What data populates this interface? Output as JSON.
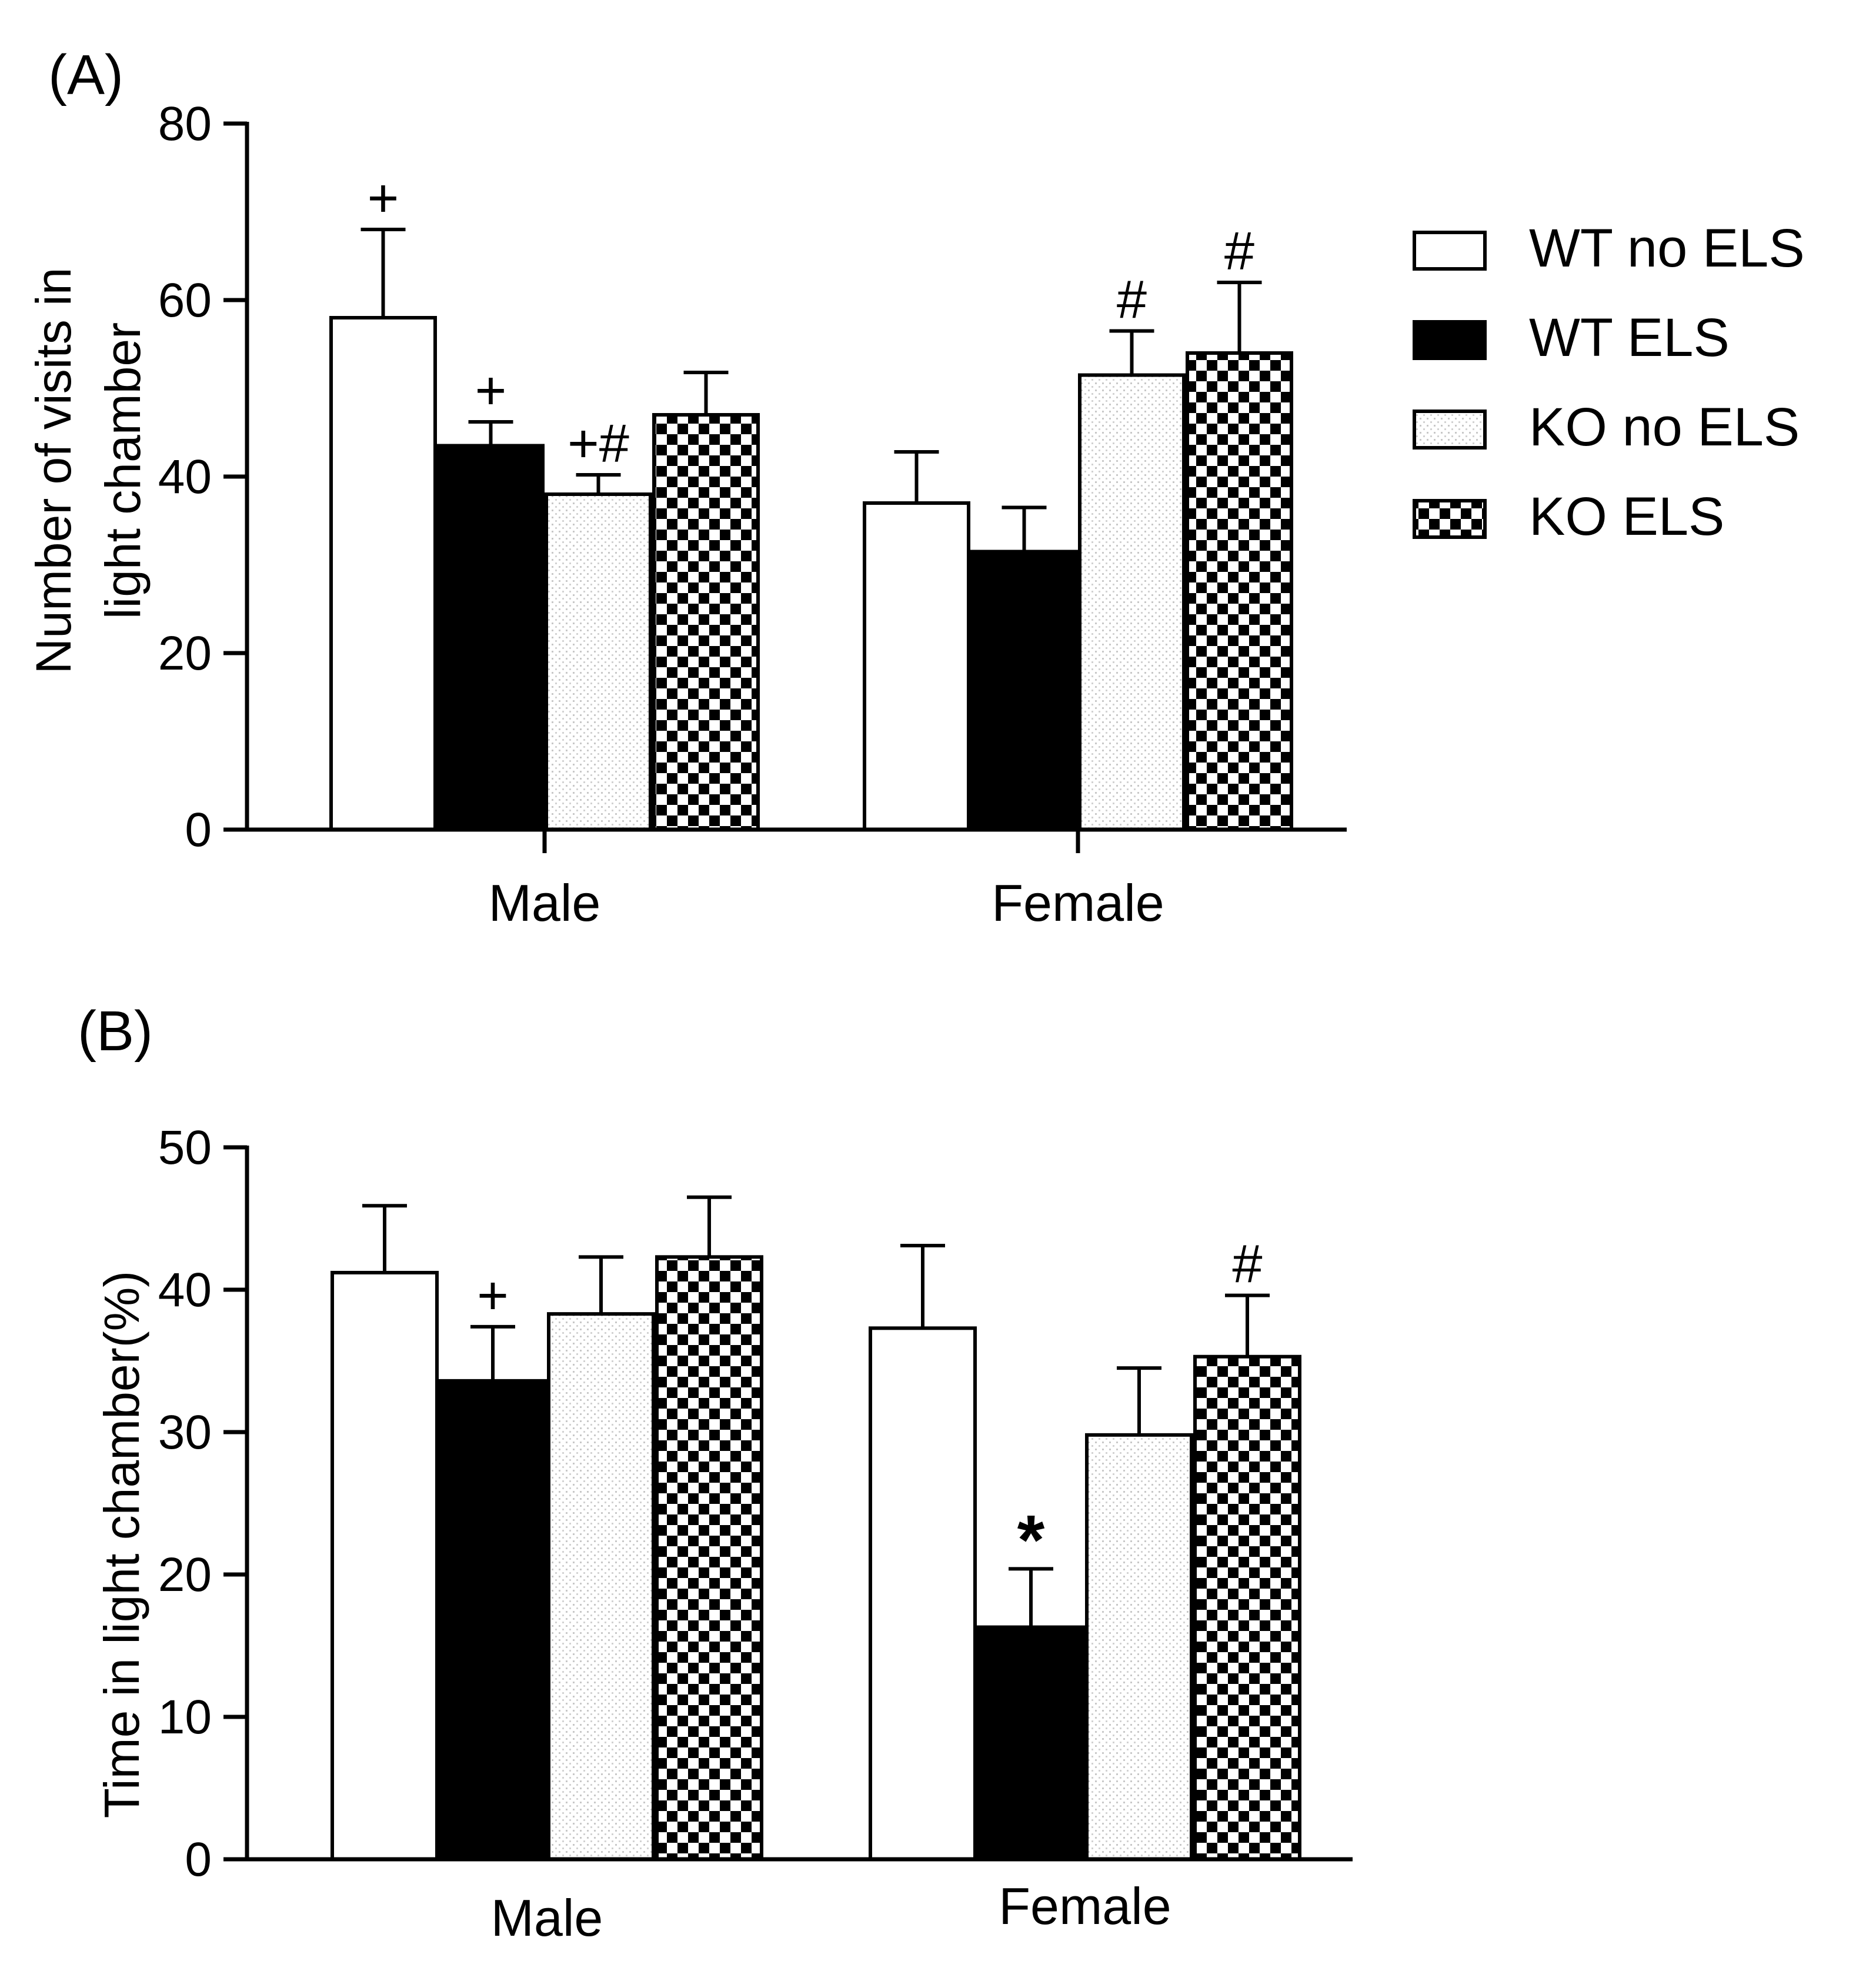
{
  "chart_data": [
    {
      "panel": "(A)",
      "type": "bar",
      "title": "",
      "xlabel": "",
      "ylabel_lines": [
        "Number of visits in",
        "light chamber"
      ],
      "ylim": [
        0,
        80
      ],
      "yticks": [
        0,
        20,
        40,
        60,
        80
      ],
      "categories": [
        "Male",
        "Female"
      ],
      "series": [
        {
          "name": "WT no ELS",
          "values": [
            58,
            37
          ],
          "errors": [
            10,
            5.8
          ],
          "annotations": [
            "+",
            ""
          ]
        },
        {
          "name": "WT ELS",
          "values": [
            43.5,
            31.5
          ],
          "errors": [
            2.7,
            5
          ],
          "annotations": [
            "+",
            ""
          ]
        },
        {
          "name": "KO no ELS",
          "values": [
            38,
            51.5
          ],
          "errors": [
            2.2,
            5
          ],
          "annotations": [
            "+#",
            "#"
          ]
        },
        {
          "name": "KO ELS",
          "values": [
            47,
            54
          ],
          "errors": [
            4.8,
            8
          ],
          "annotations": [
            "",
            "#"
          ]
        }
      ]
    },
    {
      "panel": "(B)",
      "type": "bar",
      "title": "",
      "xlabel": "",
      "ylabel_lines": [
        "Time in light chamber(%)"
      ],
      "ylim": [
        0,
        50
      ],
      "yticks": [
        0,
        10,
        20,
        30,
        40,
        50
      ],
      "categories": [
        "Male",
        "Female"
      ],
      "series": [
        {
          "name": "WT no ELS",
          "values": [
            41.2,
            37.3
          ],
          "errors": [
            4.7,
            5.8
          ],
          "annotations": [
            "",
            ""
          ]
        },
        {
          "name": "WT ELS",
          "values": [
            33.6,
            16.3
          ],
          "errors": [
            3.8,
            4.1
          ],
          "annotations": [
            "+",
            "*"
          ]
        },
        {
          "name": "KO no ELS",
          "values": [
            38.3,
            29.8
          ],
          "errors": [
            4,
            4.7
          ],
          "annotations": [
            "",
            ""
          ]
        },
        {
          "name": "KO ELS",
          "values": [
            42.3,
            35.3
          ],
          "errors": [
            4.2,
            4.3
          ],
          "annotations": [
            "",
            "#"
          ]
        }
      ]
    }
  ],
  "legend": {
    "placement": "right",
    "entries": [
      "WT no ELS",
      "WT ELS",
      "KO no ELS",
      "KO ELS"
    ]
  }
}
